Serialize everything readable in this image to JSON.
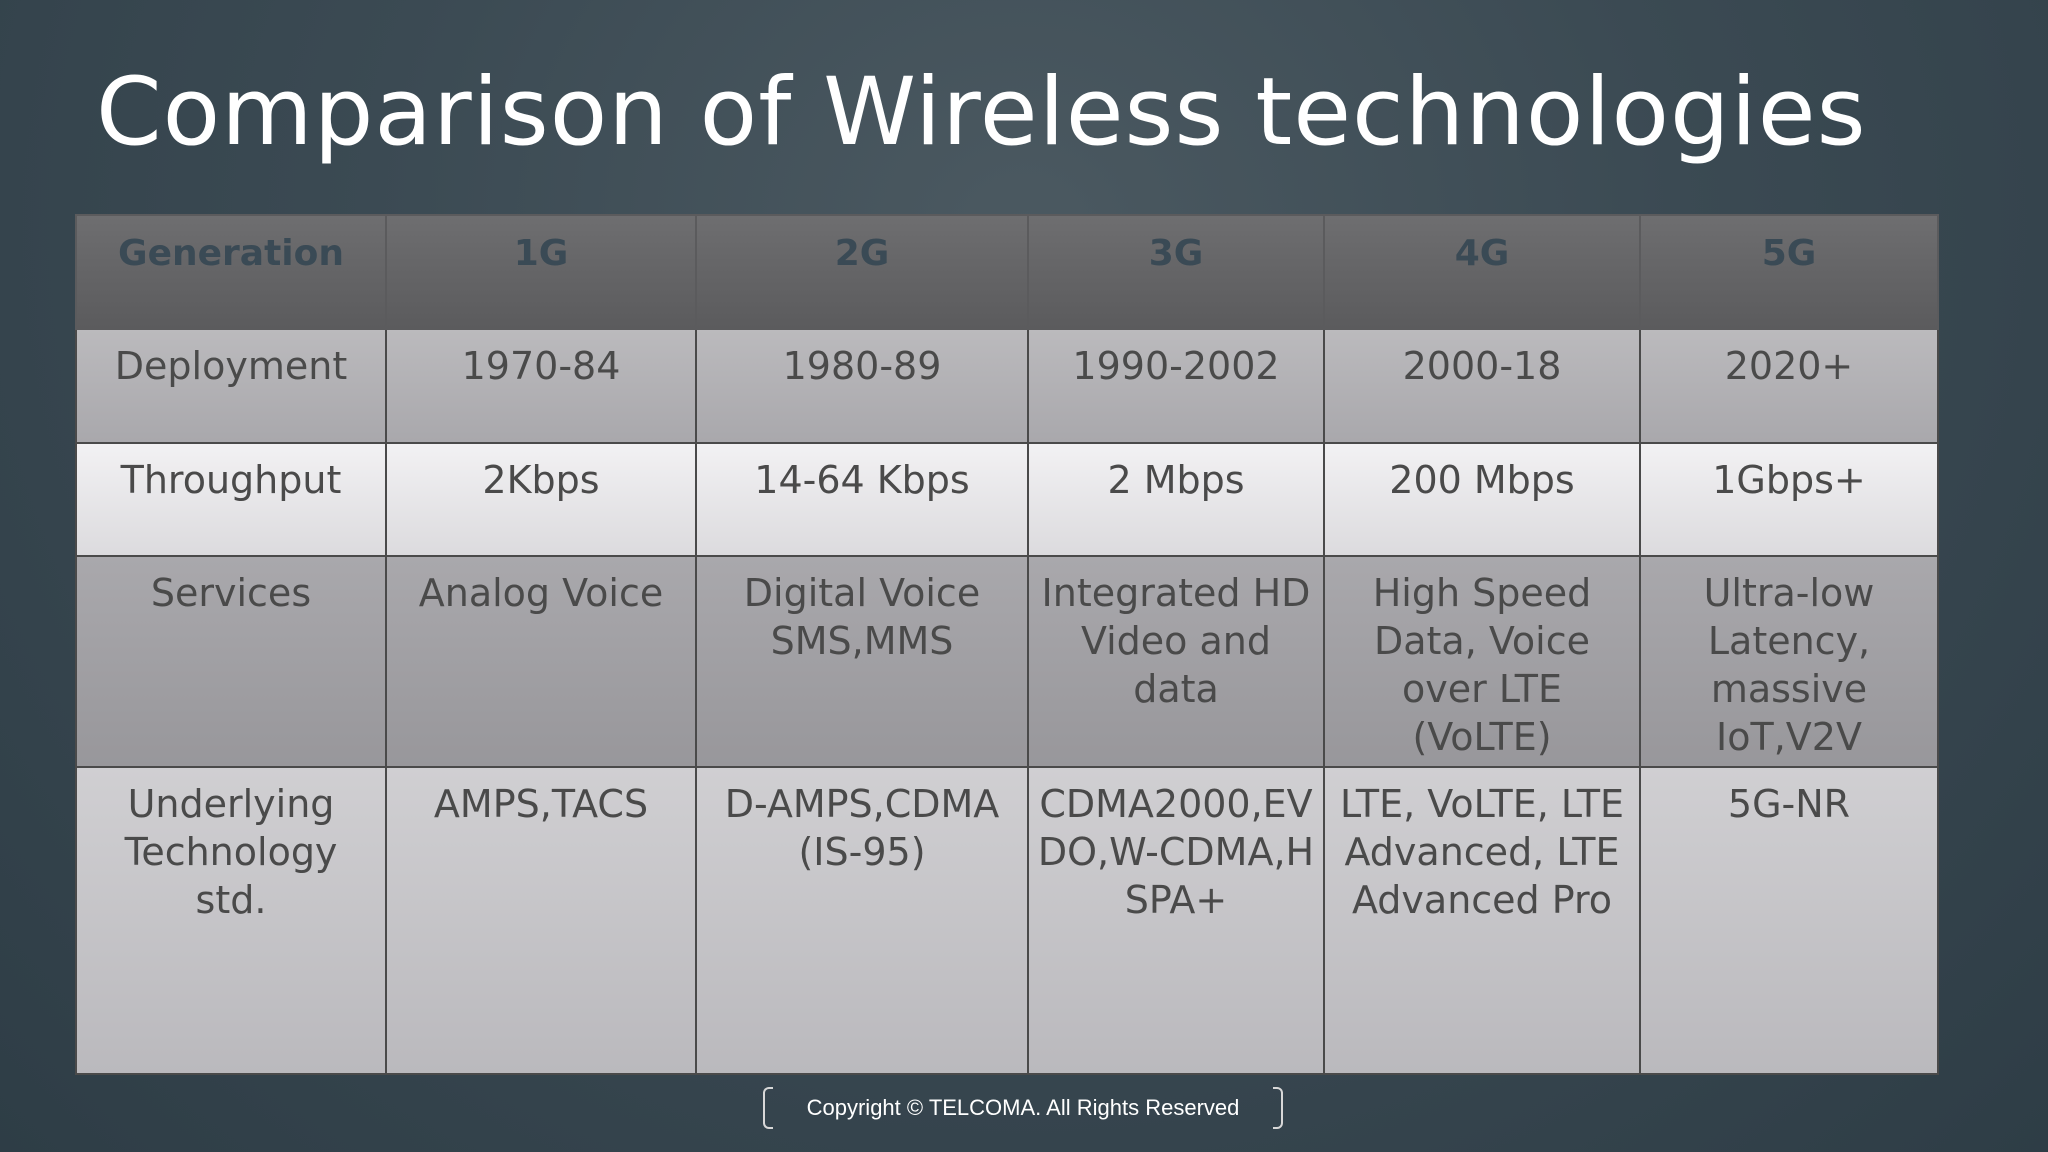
{
  "title": "Comparison of Wireless technologies",
  "table": {
    "header": [
      "Generation",
      "1G",
      "2G",
      "3G",
      "4G",
      "5G"
    ],
    "rows": [
      {
        "label": "Deployment",
        "values": [
          "1970-84",
          "1980-89",
          "1990-2002",
          "2000-18",
          "2020+"
        ]
      },
      {
        "label": "Throughput",
        "values": [
          "2Kbps",
          "14-64 Kbps",
          "2 Mbps",
          "200 Mbps",
          "1Gbps+"
        ]
      },
      {
        "label": "Services",
        "values": [
          "Analog Voice",
          "Digital Voice SMS,MMS",
          "Integrated HD Video and data",
          "High Speed Data, Voice over LTE (VoLTE)",
          "Ultra-low Latency, massive IoT,V2V"
        ]
      },
      {
        "label": "Underlying Technology std.",
        "values": [
          "AMPS,TACS",
          "D-AMPS,CDMA (IS-95)",
          "CDMA2000,EVDO,W-CDMA,HSPA+",
          "LTE, VoLTE, LTE Advanced, LTE Advanced Pro",
          "5G-NR"
        ]
      }
    ]
  },
  "footer": "Copyright © TELCOMA.  All Rights Reserved"
}
